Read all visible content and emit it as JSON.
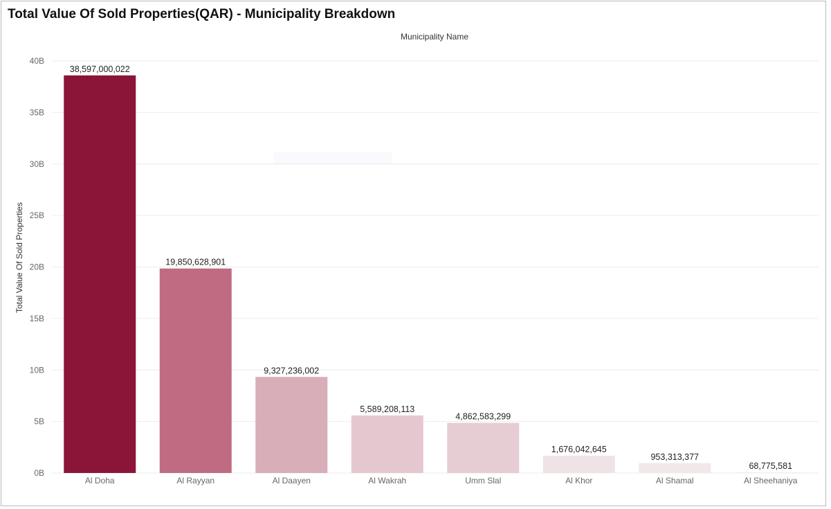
{
  "title": "Total Value Of Sold Properties(QAR) - Municipality Breakdown",
  "chart_data": {
    "type": "bar",
    "title": "Total Value Of Sold Properties(QAR) - Municipality Breakdown",
    "xlabel": "Municipality Name",
    "ylabel": "Total Value Of Sold Properties",
    "categories": [
      "Al Doha",
      "Al Rayyan",
      "Al Daayen",
      "Al Wakrah",
      "Umm Slal",
      "Al Khor",
      "Al Shamal",
      "Al Sheehaniya"
    ],
    "values": [
      38597000022,
      19850628901,
      9327236002,
      5589208113,
      4862583299,
      1676042645,
      953313377,
      68775581
    ],
    "data_labels": [
      "38,597,000,022",
      "19,850,628,901",
      "9,327,236,002",
      "5,589,208,113",
      "4,862,583,299",
      "1,676,042,645",
      "953,313,377",
      "68,775,581"
    ],
    "colors": [
      "#8b1538",
      "#bf6c83",
      "#d8aeb9",
      "#e5c8cf",
      "#e6cdd3",
      "#efe3e6",
      "#f1e8ea",
      "#f3eef0"
    ],
    "ylim": [
      0,
      40000000000
    ],
    "yticks": [
      0,
      5000000000,
      10000000000,
      15000000000,
      20000000000,
      25000000000,
      30000000000,
      35000000000,
      40000000000
    ],
    "ytick_labels": [
      "0B",
      "5B",
      "10B",
      "15B",
      "20B",
      "25B",
      "30B",
      "35B",
      "40B"
    ],
    "grid": true,
    "legend": "none"
  }
}
